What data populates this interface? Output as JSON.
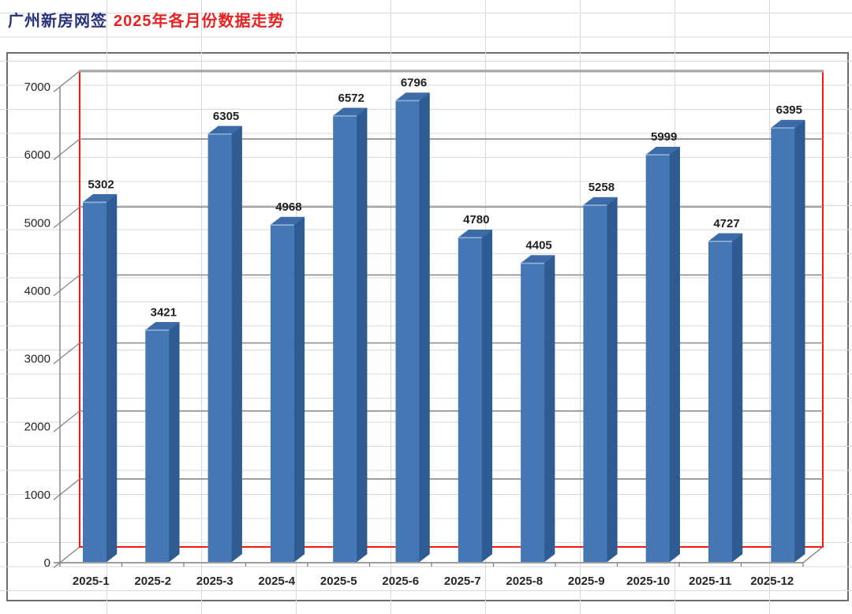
{
  "title": {
    "primary": "广州新房网签",
    "secondary": "2025年各月份数据走势"
  },
  "chart_data": {
    "type": "bar",
    "style": "3d-column",
    "title": "广州新房网签 2025年各月份数据走势",
    "categories": [
      "2025-1",
      "2025-2",
      "2025-3",
      "2025-4",
      "2025-5",
      "2025-6",
      "2025-7",
      "2025-8",
      "2025-9",
      "2025-10",
      "2025-11",
      "2025-12"
    ],
    "values": [
      5302,
      3421,
      6305,
      4968,
      6572,
      6796,
      4780,
      4405,
      5258,
      5999,
      4727,
      6395
    ],
    "value_labels_shown": true,
    "xlabel": "",
    "ylabel": "",
    "ylim": [
      0,
      7000
    ],
    "yticks": [
      0,
      1000,
      2000,
      3000,
      4000,
      5000,
      6000,
      7000
    ],
    "grid": true,
    "legend": false,
    "colors": {
      "bar_front": "#4577b5",
      "bar_side": "#2d5b92",
      "bar_top": "#3c6ba8",
      "bar_bevel": "#93b2d8",
      "plot_border": "#fb1511",
      "major_gridline": "#8f8f8f",
      "wall_top_line": "#a6a6a6",
      "axis_line": "#7f7f7f",
      "sheet_gridline": "#d9d9d9",
      "label_text": "#262626",
      "value_text": "#1f1f1f",
      "title_primary": "#28317e",
      "title_secondary": "#e62222",
      "chart_frame_border": "#6e6e6e"
    }
  }
}
